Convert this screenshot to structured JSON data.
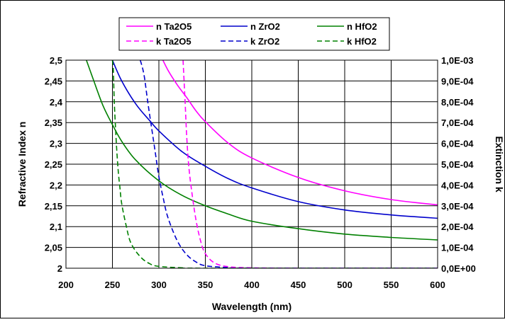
{
  "chart_data": {
    "type": "line",
    "title": "",
    "xlabel": "Wavelength (nm)",
    "ylabel": "Refractive Index n",
    "y2label": "Extinction k",
    "xlim": [
      200,
      600
    ],
    "ylim": [
      2.0,
      2.5
    ],
    "y2lim": [
      0,
      0.001
    ],
    "grid": true,
    "legend_position": "top-center",
    "x_ticks": [
      "200",
      "250",
      "300",
      "350",
      "400",
      "450",
      "500",
      "550",
      "600"
    ],
    "y_ticks": [
      "2",
      "2,05",
      "2,1",
      "2,15",
      "2,2",
      "2,25",
      "2,3",
      "2,35",
      "2,4",
      "2,45",
      "2,5"
    ],
    "y2_ticks": [
      "0,0E+00",
      "1,0E-04",
      "2,0E-04",
      "3,0E-04",
      "4,0E-04",
      "5,0E-04",
      "6,0E-04",
      "7,0E-04",
      "8,0E-04",
      "9,0E-04",
      "1,0E-03"
    ],
    "series": [
      {
        "name": "n Ta2O5",
        "axis": "left",
        "dash": false,
        "color": "#ff00ff",
        "x": [
          300,
          310,
          320,
          330,
          340,
          350,
          375,
          400,
          450,
          500,
          550,
          600
        ],
        "y": [
          2.52,
          2.475,
          2.44,
          2.41,
          2.378,
          2.352,
          2.3,
          2.265,
          2.218,
          2.186,
          2.165,
          2.152
        ]
      },
      {
        "name": "n ZrO2",
        "axis": "left",
        "dash": false,
        "color": "#0000cc",
        "x": [
          250,
          260,
          275,
          290,
          300,
          325,
          350,
          375,
          400,
          450,
          500,
          550,
          600
        ],
        "y": [
          2.5,
          2.45,
          2.395,
          2.355,
          2.33,
          2.28,
          2.245,
          2.215,
          2.193,
          2.16,
          2.14,
          2.128,
          2.12
        ]
      },
      {
        "name": "n HfO2",
        "axis": "left",
        "dash": false,
        "color": "#008000",
        "x": [
          222,
          230,
          240,
          250,
          260,
          275,
          300,
          325,
          350,
          375,
          400,
          450,
          500,
          550,
          600
        ],
        "y": [
          2.5,
          2.45,
          2.39,
          2.345,
          2.305,
          2.26,
          2.21,
          2.175,
          2.15,
          2.13,
          2.113,
          2.095,
          2.082,
          2.074,
          2.068
        ]
      },
      {
        "name": "k Ta2O5",
        "axis": "right",
        "dash": true,
        "color": "#ff00ff",
        "x": [
          326,
          328,
          330,
          332,
          335,
          340,
          345,
          350,
          360,
          375,
          400,
          450,
          600
        ],
        "y": [
          0.001,
          0.00082,
          0.00063,
          0.0005,
          0.00038,
          0.00023,
          0.00013,
          7e-05,
          2.5e-05,
          7e-06,
          2e-06,
          0,
          0
        ]
      },
      {
        "name": "k ZrO2",
        "axis": "right",
        "dash": true,
        "color": "#0000cc",
        "x": [
          280,
          284,
          288,
          292,
          296,
          300,
          305,
          310,
          320,
          330,
          340,
          350,
          375,
          400,
          600
        ],
        "y": [
          0.001,
          0.00093,
          0.0008,
          0.00068,
          0.00056,
          0.00044,
          0.00033,
          0.00024,
          0.00013,
          6.5e-05,
          3e-05,
          1.2e-05,
          3e-06,
          0,
          0
        ]
      },
      {
        "name": "k HfO2",
        "axis": "right",
        "dash": true,
        "color": "#008000",
        "x": [
          250,
          251,
          252,
          254,
          256,
          258,
          260,
          265,
          270,
          280,
          290,
          300,
          325,
          350,
          600
        ],
        "y": [
          0.001,
          0.00095,
          0.0008,
          0.00062,
          0.00048,
          0.00039,
          0.00031,
          0.0002,
          0.00012,
          5.5e-05,
          2.2e-05,
          9e-06,
          2e-06,
          0,
          0
        ]
      }
    ]
  }
}
